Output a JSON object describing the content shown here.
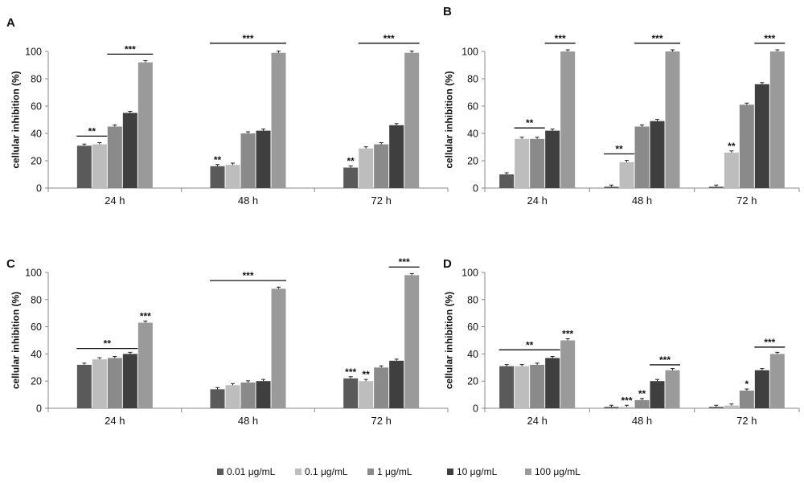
{
  "colors": {
    "s0": "#5a5a5a",
    "s1": "#bdbdbd",
    "s2": "#8a8a8a",
    "s3": "#3f3f3f",
    "s4": "#9a9a9a",
    "axis": "#888888",
    "text": "#111111"
  },
  "legend": {
    "items": [
      "0.01 μg/mL",
      "0.1 μg/mL",
      "1 μg/mL",
      "10 μg/mL",
      "100 μg/mL"
    ]
  },
  "chart_data": [
    {
      "type": "bar",
      "panel_label": "A",
      "categories": [
        "24 h",
        "48 h",
        "72 h"
      ],
      "ylabel": "cellular inhibition (%)",
      "ylim": [
        0,
        100
      ],
      "yticks": [
        0,
        20,
        40,
        60,
        80,
        100
      ],
      "series": [
        {
          "name": "0.01 μg/mL",
          "values": [
            31,
            16,
            15
          ]
        },
        {
          "name": "0.1 μg/mL",
          "values": [
            32,
            17,
            29
          ]
        },
        {
          "name": "1 μg/mL",
          "values": [
            45,
            40,
            32
          ]
        },
        {
          "name": "10 μg/mL",
          "values": [
            55,
            42,
            46
          ]
        },
        {
          "name": "100 μg/mL",
          "values": [
            92,
            99,
            99
          ]
        }
      ],
      "annotations": [
        {
          "text": "**",
          "group": 0,
          "from": 0,
          "to": 1,
          "y": 38
        },
        {
          "text": "***",
          "group": 0,
          "from": 2,
          "to": 4,
          "y": 98
        },
        {
          "text": "**",
          "group": 1,
          "series": 0
        },
        {
          "text": "***",
          "group": 1,
          "from": 0,
          "to": 4,
          "y": 106
        },
        {
          "text": "**",
          "group": 2,
          "series": 0
        },
        {
          "text": "***",
          "group": 2,
          "from": 1,
          "to": 4,
          "y": 106
        }
      ]
    },
    {
      "type": "bar",
      "panel_label": "B",
      "categories": [
        "24 h",
        "48 h",
        "72 h"
      ],
      "ylabel": "cellular inhibition (%)",
      "ylim": [
        0,
        100
      ],
      "yticks": [
        0,
        20,
        40,
        60,
        80,
        100
      ],
      "series": [
        {
          "name": "0.01 μg/mL",
          "values": [
            10,
            1,
            1
          ]
        },
        {
          "name": "0.1 μg/mL",
          "values": [
            36,
            19,
            26
          ]
        },
        {
          "name": "1 μg/mL",
          "values": [
            36,
            45,
            61
          ]
        },
        {
          "name": "10 μg/mL",
          "values": [
            42,
            49,
            76
          ]
        },
        {
          "name": "100 μg/mL",
          "values": [
            100,
            100,
            100
          ]
        }
      ],
      "annotations": [
        {
          "text": "**",
          "group": 0,
          "from": 1,
          "to": 2,
          "y": 44
        },
        {
          "text": "***",
          "group": 0,
          "from": 3,
          "to": 4,
          "y": 106
        },
        {
          "text": "**",
          "group": 1,
          "from": 0,
          "to": 1,
          "y": 25
        },
        {
          "text": "***",
          "group": 1,
          "from": 2,
          "to": 4,
          "y": 106
        },
        {
          "text": "**",
          "group": 2,
          "series": 1
        },
        {
          "text": "***",
          "group": 2,
          "from": 3,
          "to": 4,
          "y": 106
        }
      ]
    },
    {
      "type": "bar",
      "panel_label": "C",
      "categories": [
        "24 h",
        "48 h",
        "72 h"
      ],
      "ylabel": "cellular inhibition (%)",
      "ylim": [
        0,
        100
      ],
      "yticks": [
        0,
        20,
        40,
        60,
        80,
        100
      ],
      "series": [
        {
          "name": "0.01 μg/mL",
          "values": [
            32,
            14,
            22
          ]
        },
        {
          "name": "0.1 μg/mL",
          "values": [
            36,
            17,
            20
          ]
        },
        {
          "name": "1 μg/mL",
          "values": [
            37,
            19,
            30
          ]
        },
        {
          "name": "10 μg/mL",
          "values": [
            40,
            20,
            35
          ]
        },
        {
          "name": "100 μg/mL",
          "values": [
            63,
            88,
            98
          ]
        }
      ],
      "annotations": [
        {
          "text": "**",
          "group": 0,
          "from": 0,
          "to": 3,
          "y": 44
        },
        {
          "text": "***",
          "group": 0,
          "series": 4
        },
        {
          "text": "***",
          "group": 1,
          "from": 0,
          "to": 4,
          "y": 94
        },
        {
          "text": "***",
          "group": 2,
          "series": 0
        },
        {
          "text": "**",
          "group": 2,
          "series": 1
        },
        {
          "text": "***",
          "group": 2,
          "from": 3,
          "to": 4,
          "y": 104
        }
      ]
    },
    {
      "type": "bar",
      "panel_label": "D",
      "categories": [
        "24 h",
        "48 h",
        "72 h"
      ],
      "ylabel": "cellular inhibition (%)",
      "ylim": [
        0,
        100
      ],
      "yticks": [
        0,
        20,
        40,
        60,
        80,
        100
      ],
      "series": [
        {
          "name": "0.01 μg/mL",
          "values": [
            31,
            1,
            1
          ]
        },
        {
          "name": "0.1 μg/mL",
          "values": [
            31,
            1,
            2
          ]
        },
        {
          "name": "1 μg/mL",
          "values": [
            32,
            6,
            13
          ]
        },
        {
          "name": "10 μg/mL",
          "values": [
            37,
            20,
            28
          ]
        },
        {
          "name": "100 μg/mL",
          "values": [
            50,
            28,
            40
          ]
        }
      ],
      "annotations": [
        {
          "text": "**",
          "group": 0,
          "from": 0,
          "to": 3,
          "y": 43
        },
        {
          "text": "***",
          "group": 0,
          "series": 4
        },
        {
          "text": "***",
          "group": 1,
          "series": 1
        },
        {
          "text": "**",
          "group": 1,
          "series": 2
        },
        {
          "text": "***",
          "group": 1,
          "from": 3,
          "to": 4,
          "y": 32
        },
        {
          "text": "*",
          "group": 2,
          "series": 2
        },
        {
          "text": "***",
          "group": 2,
          "from": 3,
          "to": 4,
          "y": 45
        }
      ]
    }
  ]
}
